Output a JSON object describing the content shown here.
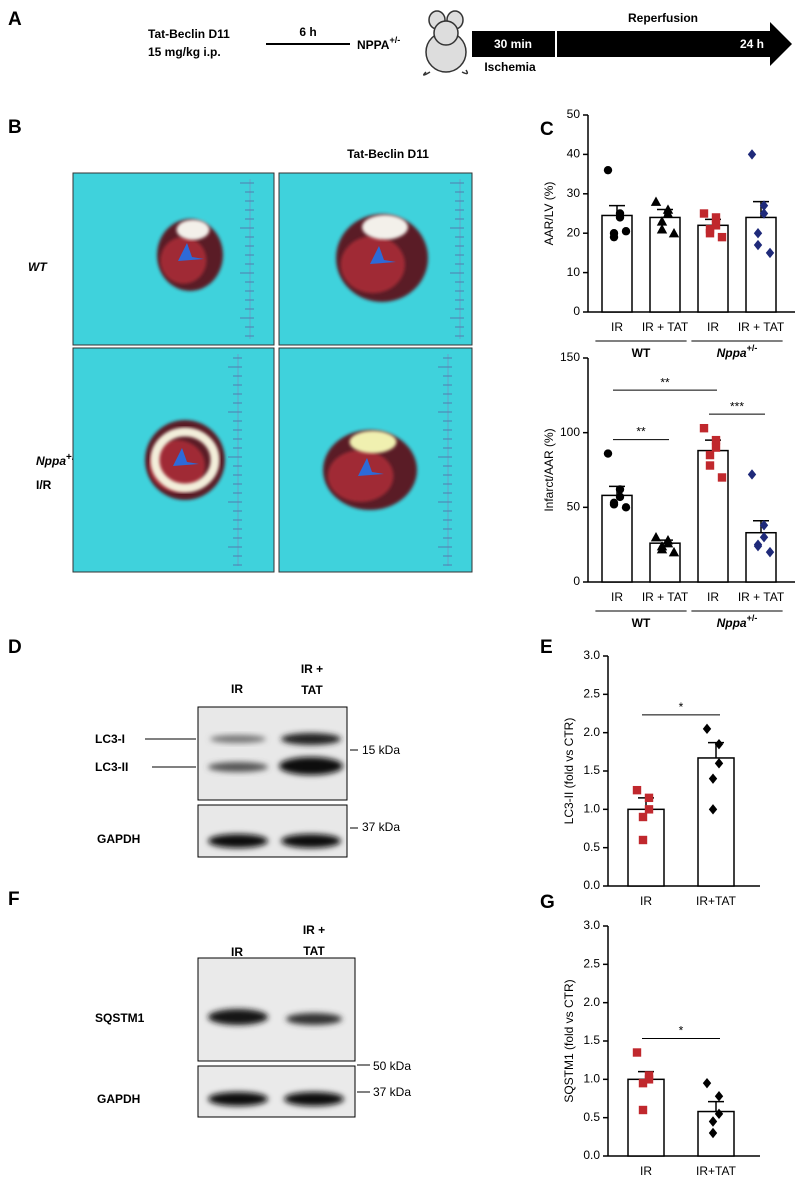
{
  "panel_labels": [
    "A",
    "B",
    "C",
    "D",
    "E",
    "F",
    "G"
  ],
  "schematic": {
    "drug": "Tat-Beclin D11",
    "dose": "15 mg/kg i.p.",
    "interval": "6 h",
    "mouse": "NPPA",
    "mouse_sup": "+/-",
    "ischemia_time": "30 min",
    "ischemia": "Ischemia",
    "reperfusion": "Reperfusion",
    "reperfusion_time": "24 h"
  },
  "images": {
    "column_title": "Tat-Beclin D11",
    "row_wt": "WT",
    "row_nppa": "Nppa",
    "row_nppa_sup": "+/-",
    "row_nppa_sub": "I/R"
  },
  "blots": [
    {
      "lanes": [
        "IR",
        "IR + TAT"
      ],
      "bands": [
        "LC3-I",
        "LC3-II",
        "GAPDH"
      ],
      "markers": [
        "15 kDa",
        "37 kDa"
      ]
    },
    {
      "lanes": [
        "IR",
        "IR + TAT"
      ],
      "bands": [
        "SQSTM1",
        "GAPDH"
      ],
      "markers": [
        "50 kDa",
        "37 kDa"
      ]
    }
  ],
  "chart_data": [
    {
      "type": "bar",
      "y_label": "AAR/LV (%)",
      "categories": [
        "IR",
        "IR + TAT",
        "IR",
        "IR + TAT"
      ],
      "groups": [
        {
          "label": "WT",
          "bars": [
            0,
            1
          ]
        },
        {
          "label": "Nppa",
          "sup": "+/-",
          "bars": [
            2,
            3
          ]
        }
      ],
      "values": [
        24.5,
        24,
        22,
        24
      ],
      "errors": [
        2.5,
        2,
        1.5,
        4
      ],
      "points": [
        [
          36,
          25,
          24,
          20,
          19,
          20.5
        ],
        [
          28,
          26,
          25,
          23,
          21,
          20
        ],
        [
          25,
          24,
          22,
          21,
          20,
          19
        ],
        [
          40,
          27,
          25,
          20,
          17,
          15
        ]
      ],
      "point_colors": [
        "#000000",
        "#000000",
        "#c0282d",
        "#1f2a7a"
      ],
      "point_shapes": [
        "circle",
        "triangle",
        "square",
        "diamond"
      ],
      "color": "#ffffff",
      "ylim": [
        0,
        50
      ],
      "yticks": [
        0,
        10,
        20,
        30,
        40,
        50
      ],
      "annotations": []
    },
    {
      "type": "bar",
      "y_label": "Infarct/AAR (%)",
      "categories": [
        "IR",
        "IR + TAT",
        "IR",
        "IR + TAT"
      ],
      "groups": [
        {
          "label": "WT",
          "bars": [
            0,
            1
          ]
        },
        {
          "label": "Nppa",
          "sup": "+/-",
          "bars": [
            2,
            3
          ]
        }
      ],
      "values": [
        58,
        26,
        88,
        33
      ],
      "errors": [
        6,
        2,
        7,
        8
      ],
      "points": [
        [
          86,
          62,
          57,
          53,
          52,
          50
        ],
        [
          30,
          28,
          26,
          24,
          22,
          20
        ],
        [
          103,
          95,
          90,
          85,
          78,
          70
        ],
        [
          72,
          38,
          30,
          25,
          24,
          20
        ]
      ],
      "point_colors": [
        "#000000",
        "#000000",
        "#c0282d",
        "#1f2a7a"
      ],
      "point_shapes": [
        "circle",
        "triangle",
        "square",
        "diamond"
      ],
      "color": "#ffffff",
      "ylim": [
        0,
        150
      ],
      "yticks": [
        0,
        50,
        100,
        150
      ],
      "annotations": [
        {
          "text": "**",
          "bars": [
            0,
            1
          ]
        },
        {
          "text": "***",
          "bars": [
            2,
            3
          ]
        },
        {
          "text": "**",
          "bars": [
            0,
            2
          ]
        }
      ]
    },
    {
      "type": "bar",
      "y_label": "LC3-II (fold vs CTR)",
      "categories": [
        "IR",
        "IR+TAT"
      ],
      "values": [
        1.0,
        1.67
      ],
      "errors": [
        0.15,
        0.2
      ],
      "points": [
        [
          1.25,
          1.15,
          1.0,
          0.9,
          0.6
        ],
        [
          2.05,
          1.85,
          1.6,
          1.4,
          1.0
        ]
      ],
      "point_colors": [
        "#c0282d",
        "#000000"
      ],
      "point_shapes": [
        "square",
        "diamond"
      ],
      "color": "#ffffff",
      "ylim": [
        0,
        3
      ],
      "yticks": [
        {
          "value": 0,
          "label": "0.0"
        },
        {
          "value": 0.5,
          "label": "0.5"
        },
        {
          "value": 1,
          "label": "1.0"
        },
        {
          "value": 1.5,
          "label": "1.5"
        },
        {
          "value": 2,
          "label": "2.0"
        },
        {
          "value": 2.5,
          "label": "2.5"
        },
        {
          "value": 3,
          "label": "3.0"
        }
      ],
      "annotations": [
        {
          "text": "*",
          "bars": [
            0,
            1
          ]
        }
      ]
    },
    {
      "type": "bar",
      "y_label": "SQSTM1 (fold vs CTR)",
      "categories": [
        "IR",
        "IR+TAT"
      ],
      "values": [
        1.0,
        0.58
      ],
      "errors": [
        0.1,
        0.13
      ],
      "points": [
        [
          1.35,
          1.05,
          1.0,
          0.95,
          0.6
        ],
        [
          0.95,
          0.78,
          0.55,
          0.45,
          0.3
        ]
      ],
      "point_colors": [
        "#c0282d",
        "#000000"
      ],
      "point_shapes": [
        "square",
        "diamond"
      ],
      "color": "#ffffff",
      "ylim": [
        0,
        3
      ],
      "yticks": [
        {
          "value": 0,
          "label": "0.0"
        },
        {
          "value": 0.5,
          "label": "0.5"
        },
        {
          "value": 1,
          "label": "1.0"
        },
        {
          "value": 1.5,
          "label": "1.5"
        },
        {
          "value": 2,
          "label": "2.0"
        },
        {
          "value": 2.5,
          "label": "2.5"
        },
        {
          "value": 3,
          "label": "3.0"
        }
      ],
      "annotations": [
        {
          "text": "*",
          "bars": [
            0,
            1
          ]
        }
      ]
    }
  ]
}
